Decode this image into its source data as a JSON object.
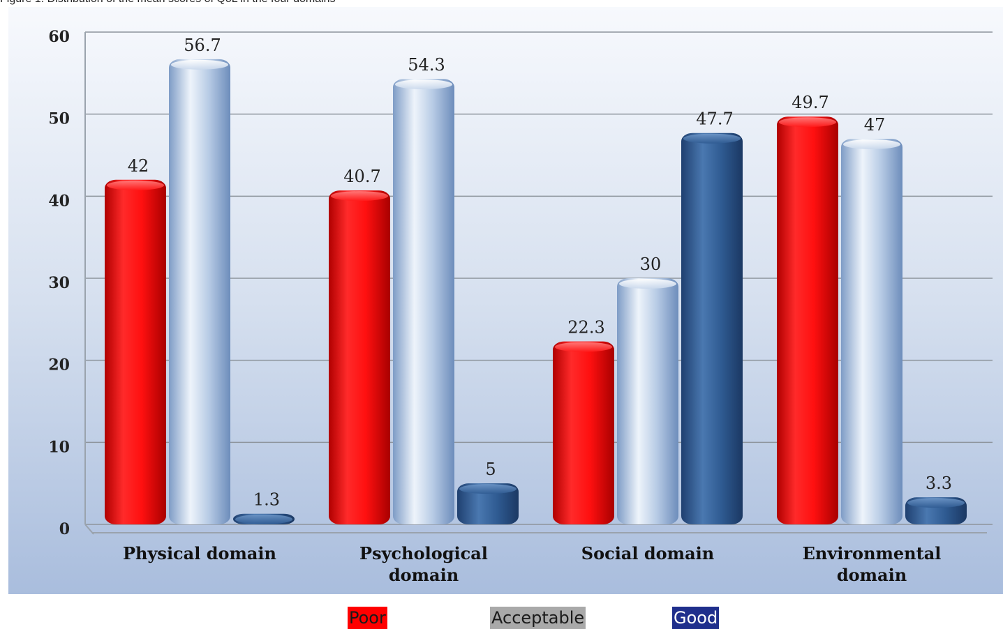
{
  "caption": "Figure 1: Distribution of the mean scores of QoL in the four domains",
  "legend": [
    {
      "label": "Poor",
      "bg": "#ff0000",
      "fg": "#1a1a1a"
    },
    {
      "label": "Acceptable",
      "bg": "#a9a9a9",
      "fg": "#1a1a1a"
    },
    {
      "label": "Good",
      "bg": "#1f2f8c",
      "fg": "#ffffff"
    }
  ],
  "colors": {
    "Poor": "#ff1010",
    "Acceptable": "#b8cde6",
    "Good": "#2f5b92"
  },
  "chart_data": {
    "type": "bar",
    "title": "",
    "xlabel": "",
    "ylabel": "",
    "ylim": [
      0,
      60
    ],
    "yticks": [
      0,
      10,
      20,
      30,
      40,
      50,
      60
    ],
    "grid": true,
    "legend_position": "bottom",
    "categories": [
      [
        "Physical domain"
      ],
      [
        "Psychological",
        "domain"
      ],
      [
        "Social domain"
      ],
      [
        "Environmental",
        "domain"
      ]
    ],
    "series": [
      {
        "name": "Poor",
        "values": [
          42,
          40.7,
          22.3,
          49.7
        ]
      },
      {
        "name": "Acceptable",
        "values": [
          56.7,
          54.3,
          30,
          47
        ]
      },
      {
        "name": "Good",
        "values": [
          1.3,
          5,
          47.7,
          3.3
        ]
      }
    ]
  }
}
